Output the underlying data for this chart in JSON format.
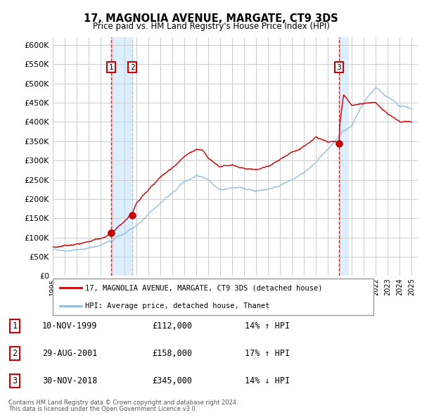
{
  "title": "17, MAGNOLIA AVENUE, MARGATE, CT9 3DS",
  "subtitle": "Price paid vs. HM Land Registry's House Price Index (HPI)",
  "ytick_values": [
    0,
    50000,
    100000,
    150000,
    200000,
    250000,
    300000,
    350000,
    400000,
    450000,
    500000,
    550000,
    600000
  ],
  "xmin": 1995.0,
  "xmax": 2025.5,
  "ymin": 0,
  "ymax": 620000,
  "sale_dates": [
    1999.86,
    2001.66,
    2018.92
  ],
  "sale_prices": [
    112000,
    158000,
    345000
  ],
  "sale_labels": [
    "1",
    "2",
    "3"
  ],
  "legend_entries": [
    {
      "label": "17, MAGNOLIA AVENUE, MARGATE, CT9 3DS (detached house)",
      "color": "#cc0000"
    },
    {
      "label": "HPI: Average price, detached house, Thanet",
      "color": "#88bbdd"
    }
  ],
  "table_rows": [
    {
      "num": "1",
      "date": "10-NOV-1999",
      "price": "£112,000",
      "note": "14% ↑ HPI"
    },
    {
      "num": "2",
      "date": "29-AUG-2001",
      "price": "£158,000",
      "note": "17% ↑ HPI"
    },
    {
      "num": "3",
      "date": "30-NOV-2018",
      "price": "£345,000",
      "note": "14% ↓ HPI"
    }
  ],
  "footnote1": "Contains HM Land Registry data © Crown copyright and database right 2024.",
  "footnote2": "This data is licensed under the Open Government Licence v3.0.",
  "grid_color": "#cccccc",
  "background_color": "#ffffff",
  "plot_bg_color": "#ffffff",
  "hpi_line_color": "#88bbdd",
  "price_line_color": "#cc0000",
  "shade_color": "#ddeeff",
  "vline_color": "#cc0000",
  "vline_color2": "#aabbcc",
  "hpi_knots_x": [
    1995,
    1996,
    1997,
    1998,
    1999,
    2000,
    2001,
    2002,
    2003,
    2004,
    2005,
    2006,
    2007,
    2008,
    2009,
    2010,
    2011,
    2012,
    2013,
    2014,
    2015,
    2016,
    2017,
    2018,
    2019,
    2020,
    2021,
    2022,
    2023,
    2024,
    2025
  ],
  "hpi_knots_y": [
    68000,
    70000,
    74000,
    80000,
    88000,
    100000,
    115000,
    138000,
    165000,
    195000,
    220000,
    248000,
    268000,
    260000,
    238000,
    244000,
    240000,
    236000,
    243000,
    255000,
    268000,
    285000,
    310000,
    335000,
    375000,
    400000,
    455000,
    495000,
    465000,
    440000,
    435000
  ],
  "prop_knots_x": [
    1995,
    1996,
    1997,
    1998,
    1999,
    1999.86,
    2001,
    2001.66,
    2002,
    2003,
    2004,
    2005,
    2006,
    2007,
    2007.5,
    2008,
    2009,
    2010,
    2011,
    2012,
    2013,
    2014,
    2015,
    2016,
    2017,
    2018,
    2018.92,
    2019,
    2019.3,
    2020,
    2021,
    2022,
    2023,
    2024,
    2025
  ],
  "prop_knots_y": [
    75000,
    78000,
    82000,
    88000,
    100000,
    112000,
    140000,
    158000,
    185000,
    215000,
    250000,
    278000,
    305000,
    320000,
    318000,
    295000,
    270000,
    278000,
    272000,
    268000,
    278000,
    295000,
    312000,
    330000,
    355000,
    345000,
    345000,
    395000,
    468000,
    440000,
    445000,
    450000,
    415000,
    395000,
    400000
  ]
}
